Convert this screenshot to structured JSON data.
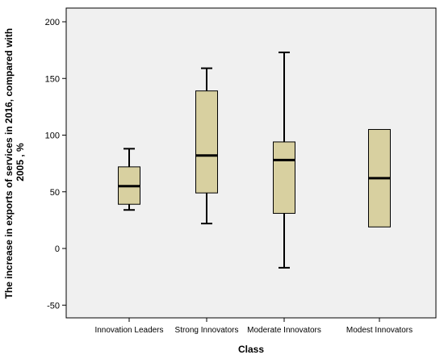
{
  "chart_data": {
    "type": "boxplot",
    "title": "",
    "xlabel": "Class",
    "ylabel_lines": [
      "The increase in exports of services in 2016, compared with",
      "2005 , %"
    ],
    "ylim": [
      -60,
      210
    ],
    "yticks": [
      -50,
      0,
      50,
      100,
      150,
      200
    ],
    "grid": false,
    "colors": {
      "plot_bg": "#f0f0f0",
      "box_fill": "#d8d0a0",
      "stroke": "#000000"
    },
    "categories": [
      "Innovation Leaders",
      "Strong Innovators",
      "Moderate Innovators",
      "Modest Innovators"
    ],
    "boxes": [
      {
        "name": "Innovation Leaders",
        "min": 34,
        "q1": 39,
        "median": 55,
        "q3": 72,
        "max": 88
      },
      {
        "name": "Strong Innovators",
        "min": 22,
        "q1": 49,
        "median": 82,
        "q3": 139,
        "max": 159
      },
      {
        "name": "Moderate Innovators",
        "min": -17,
        "q1": 31,
        "median": 78,
        "q3": 94,
        "max": 173
      },
      {
        "name": "Modest Innovators",
        "min": 19,
        "q1": 19,
        "median": 62,
        "q3": 105,
        "max": 105
      }
    ]
  }
}
